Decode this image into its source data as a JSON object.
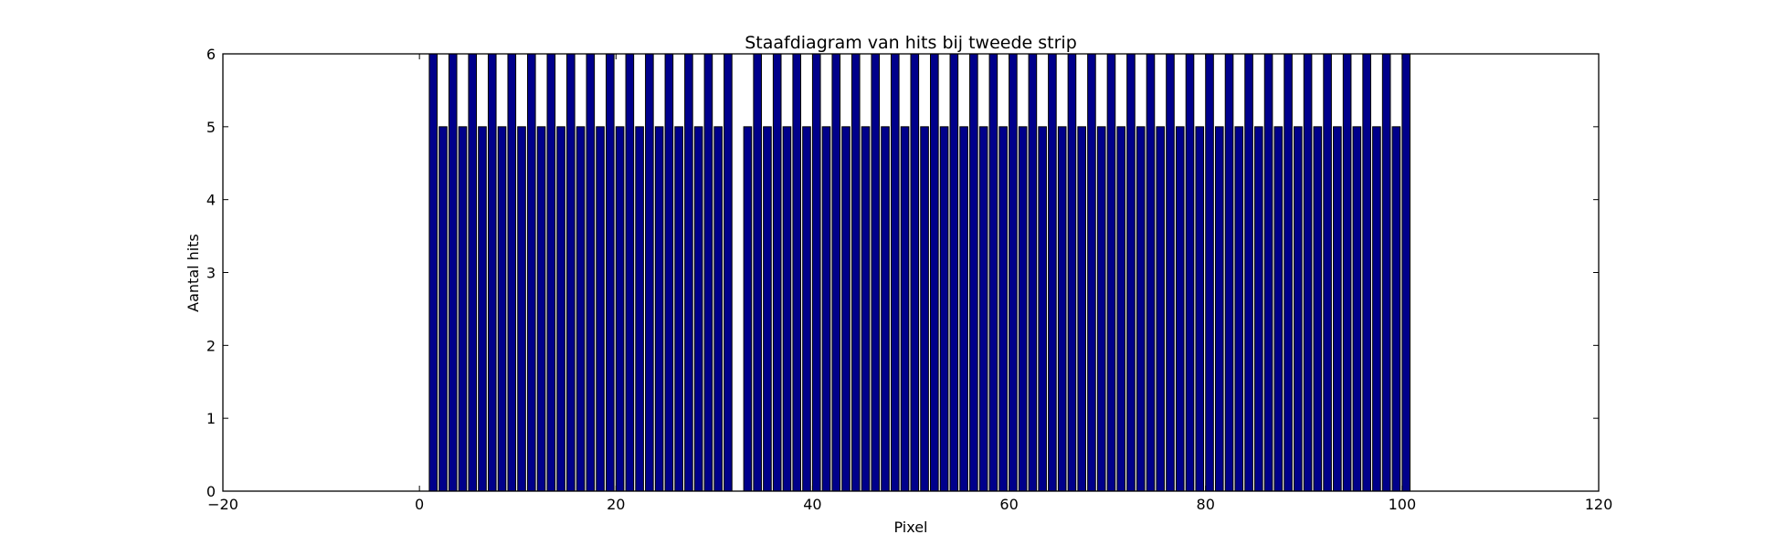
{
  "chart_data": {
    "type": "bar",
    "title": "Staafdiagram van hits bij tweede strip",
    "xlabel": "Pixel",
    "ylabel": "Aantal hits",
    "xlim": [
      -20,
      120
    ],
    "ylim": [
      0,
      6
    ],
    "xticks": [
      -20,
      0,
      20,
      40,
      60,
      80,
      100,
      120
    ],
    "yticks": [
      0,
      1,
      2,
      3,
      4,
      5,
      6
    ],
    "bar_color": "#00008b",
    "bar_edge_color": "#000000",
    "bar_width": 0.8,
    "series": [
      {
        "name": "hits",
        "x": [
          1,
          2,
          3,
          4,
          5,
          6,
          7,
          8,
          9,
          10,
          11,
          12,
          13,
          14,
          15,
          16,
          17,
          18,
          19,
          20,
          21,
          22,
          23,
          24,
          25,
          26,
          27,
          28,
          29,
          30,
          31,
          32,
          33,
          34,
          35,
          36,
          37,
          38,
          39,
          40,
          41,
          42,
          43,
          44,
          45,
          46,
          47,
          48,
          49,
          50,
          51,
          52,
          53,
          54,
          55,
          56,
          57,
          58,
          59,
          60,
          61,
          62,
          63,
          64,
          65,
          66,
          67,
          68,
          69,
          70,
          71,
          72,
          73,
          74,
          75,
          76,
          77,
          78,
          79,
          80,
          81,
          82,
          83,
          84,
          85,
          86,
          87,
          88,
          89,
          90,
          91,
          92,
          93,
          94,
          95,
          96,
          97,
          98,
          99,
          100
        ],
        "values": [
          6,
          5,
          6,
          5,
          6,
          5,
          6,
          5,
          6,
          5,
          6,
          5,
          6,
          5,
          6,
          5,
          6,
          5,
          6,
          5,
          6,
          5,
          6,
          5,
          6,
          5,
          6,
          5,
          6,
          5,
          6,
          0,
          5,
          6,
          5,
          6,
          5,
          6,
          5,
          6,
          5,
          6,
          5,
          6,
          5,
          6,
          5,
          6,
          5,
          6,
          5,
          6,
          5,
          6,
          5,
          6,
          5,
          6,
          5,
          6,
          5,
          6,
          5,
          6,
          5,
          6,
          5,
          6,
          5,
          6,
          5,
          6,
          5,
          6,
          5,
          6,
          5,
          6,
          5,
          6,
          5,
          6,
          5,
          6,
          5,
          6,
          5,
          6,
          5,
          6,
          5,
          6,
          5,
          6,
          5,
          6,
          5,
          6,
          5,
          6
        ]
      }
    ]
  }
}
